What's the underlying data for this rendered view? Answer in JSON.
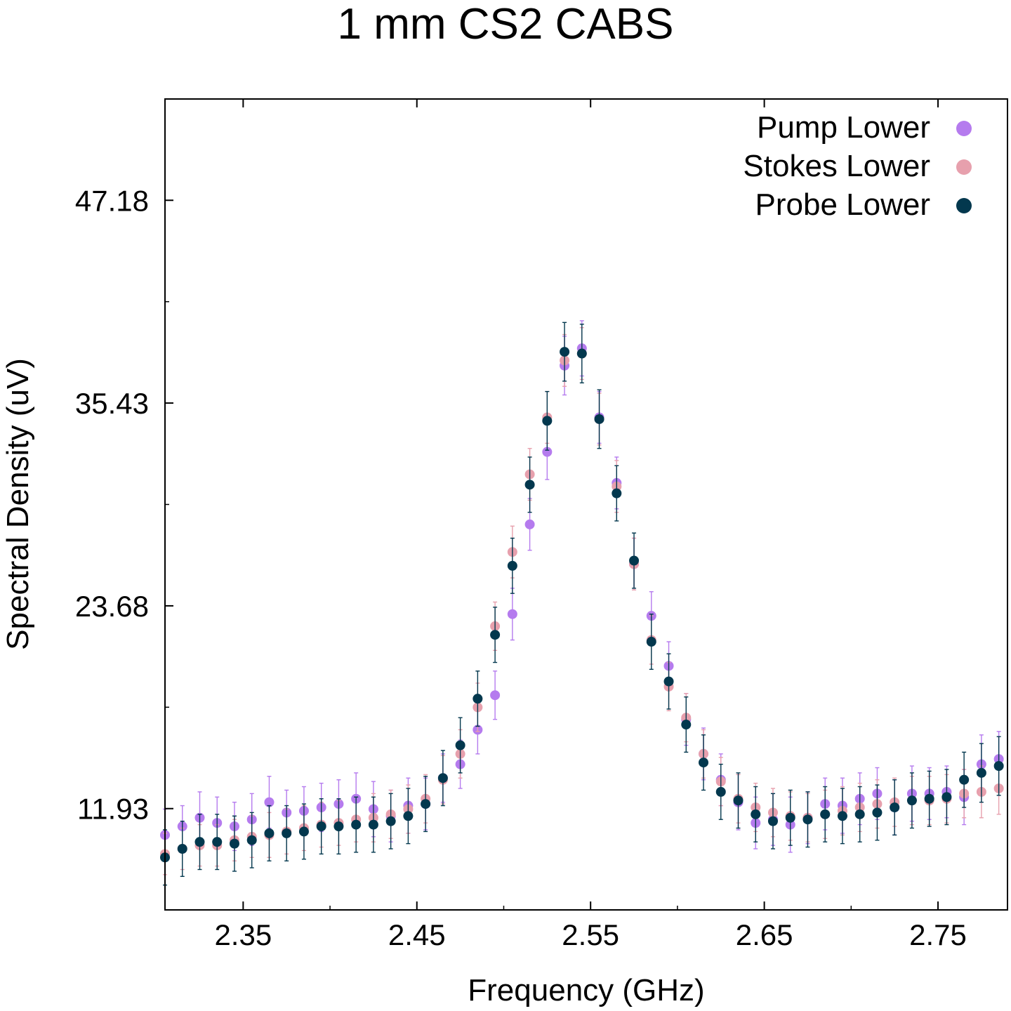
{
  "chart_data": {
    "type": "scatter",
    "title": "1 mm CS2 CABS",
    "xlabel": "Frequency (GHz)",
    "ylabel": "Spectral Density (uV)",
    "xlim": [
      2.305,
      2.79
    ],
    "ylim": [
      6.06,
      53.05
    ],
    "x_ticks": [
      2.35,
      2.45,
      2.55,
      2.65,
      2.75
    ],
    "x_tick_labels": [
      "2.35",
      "2.45",
      "2.55",
      "2.65",
      "2.75"
    ],
    "y_ticks": [
      11.93,
      23.68,
      35.43,
      47.18
    ],
    "y_tick_labels": [
      "11.93",
      "23.68",
      "35.43",
      "47.18"
    ],
    "grid": false,
    "legend_position": "top-right",
    "x": [
      2.305,
      2.315,
      2.325,
      2.335,
      2.345,
      2.355,
      2.365,
      2.375,
      2.385,
      2.395,
      2.405,
      2.415,
      2.425,
      2.435,
      2.445,
      2.455,
      2.465,
      2.475,
      2.485,
      2.495,
      2.505,
      2.515,
      2.525,
      2.535,
      2.545,
      2.555,
      2.565,
      2.575,
      2.585,
      2.595,
      2.605,
      2.615,
      2.625,
      2.635,
      2.645,
      2.655,
      2.665,
      2.675,
      2.685,
      2.695,
      2.705,
      2.715,
      2.725,
      2.735,
      2.745,
      2.755,
      2.765,
      2.775,
      2.785
    ],
    "series": [
      {
        "name": "Pump Lower",
        "color": "#b57bee",
        "values": [
          10.4,
          10.9,
          11.4,
          11.1,
          10.9,
          11.3,
          12.3,
          11.7,
          11.8,
          12.0,
          12.2,
          12.5,
          11.9,
          11.5,
          12.1,
          12.2,
          13.7,
          14.5,
          16.5,
          18.5,
          23.2,
          28.4,
          32.6,
          37.6,
          38.6,
          34.6,
          30.8,
          26.1,
          23.1,
          20.2,
          17.1,
          15.1,
          13.6,
          12.3,
          11.1,
          11.3,
          11.0,
          11.4,
          12.2,
          12.1,
          12.5,
          12.8,
          12.0,
          12.8,
          12.8,
          12.9,
          12.6,
          14.5,
          14.8
        ],
        "errors": [
          1.5,
          1.2,
          1.5,
          1.5,
          1.4,
          1.5,
          1.5,
          1.3,
          1.4,
          1.4,
          1.4,
          1.5,
          1.6,
          1.5,
          1.6,
          1.5,
          1.4,
          1.4,
          1.4,
          1.4,
          1.5,
          1.5,
          1.6,
          1.7,
          1.6,
          1.5,
          1.5,
          1.5,
          1.4,
          1.4,
          1.5,
          1.5,
          1.5,
          1.6,
          1.5,
          1.5,
          1.6,
          1.5,
          1.5,
          1.6,
          1.5,
          1.5,
          1.6,
          1.6,
          1.5,
          1.5,
          1.6,
          1.7,
          1.6
        ]
      },
      {
        "name": "Stokes Lower",
        "color": "#e7a0ad",
        "values": [
          9.3,
          9.6,
          9.8,
          9.8,
          10.1,
          10.3,
          10.4,
          10.6,
          10.8,
          11.0,
          11.1,
          11.3,
          11.4,
          11.6,
          11.9,
          12.5,
          13.6,
          15.1,
          17.8,
          22.5,
          26.8,
          31.3,
          34.6,
          37.9,
          38.3,
          34.5,
          30.6,
          26.1,
          21.7,
          19.0,
          17.2,
          15.1,
          13.5,
          12.5,
          12.0,
          11.7,
          11.5,
          11.4,
          11.6,
          11.8,
          12.0,
          12.2,
          12.3,
          12.4,
          12.4,
          12.5,
          12.8,
          12.9,
          13.1
        ],
        "errors": [
          1.2,
          1.2,
          1.2,
          1.2,
          1.2,
          1.2,
          1.3,
          1.3,
          1.3,
          1.3,
          1.3,
          1.3,
          1.4,
          1.4,
          1.4,
          1.4,
          1.4,
          1.4,
          1.4,
          1.4,
          1.5,
          1.5,
          1.5,
          1.5,
          1.5,
          1.5,
          1.5,
          1.5,
          1.4,
          1.4,
          1.4,
          1.4,
          1.4,
          1.4,
          1.4,
          1.4,
          1.4,
          1.4,
          1.4,
          1.4,
          1.4,
          1.4,
          1.4,
          1.4,
          1.4,
          1.4,
          1.4,
          1.5,
          1.5
        ]
      },
      {
        "name": "Probe Lower",
        "color": "#03384e",
        "values": [
          9.1,
          9.6,
          10.0,
          10.0,
          9.9,
          10.1,
          10.5,
          10.5,
          10.6,
          10.9,
          10.9,
          11.0,
          11.0,
          11.2,
          11.5,
          12.2,
          13.7,
          15.6,
          18.3,
          22.0,
          26.0,
          30.7,
          34.4,
          38.4,
          38.3,
          34.5,
          30.2,
          26.3,
          21.6,
          19.3,
          16.8,
          14.6,
          12.9,
          12.4,
          11.6,
          11.2,
          11.4,
          11.3,
          11.6,
          11.5,
          11.6,
          11.7,
          12.0,
          12.4,
          12.5,
          12.6,
          13.6,
          14.0,
          14.4
        ],
        "errors": [
          1.6,
          1.6,
          1.6,
          1.6,
          1.6,
          1.6,
          1.6,
          1.6,
          1.6,
          1.6,
          1.6,
          1.6,
          1.6,
          1.6,
          1.6,
          1.6,
          1.6,
          1.6,
          1.6,
          1.6,
          1.6,
          1.6,
          1.7,
          1.7,
          1.7,
          1.7,
          1.6,
          1.6,
          1.6,
          1.6,
          1.6,
          1.6,
          1.6,
          1.6,
          1.6,
          1.6,
          1.6,
          1.6,
          1.6,
          1.6,
          1.6,
          1.6,
          1.6,
          1.6,
          1.6,
          1.6,
          1.6,
          1.7,
          1.7
        ]
      }
    ]
  }
}
